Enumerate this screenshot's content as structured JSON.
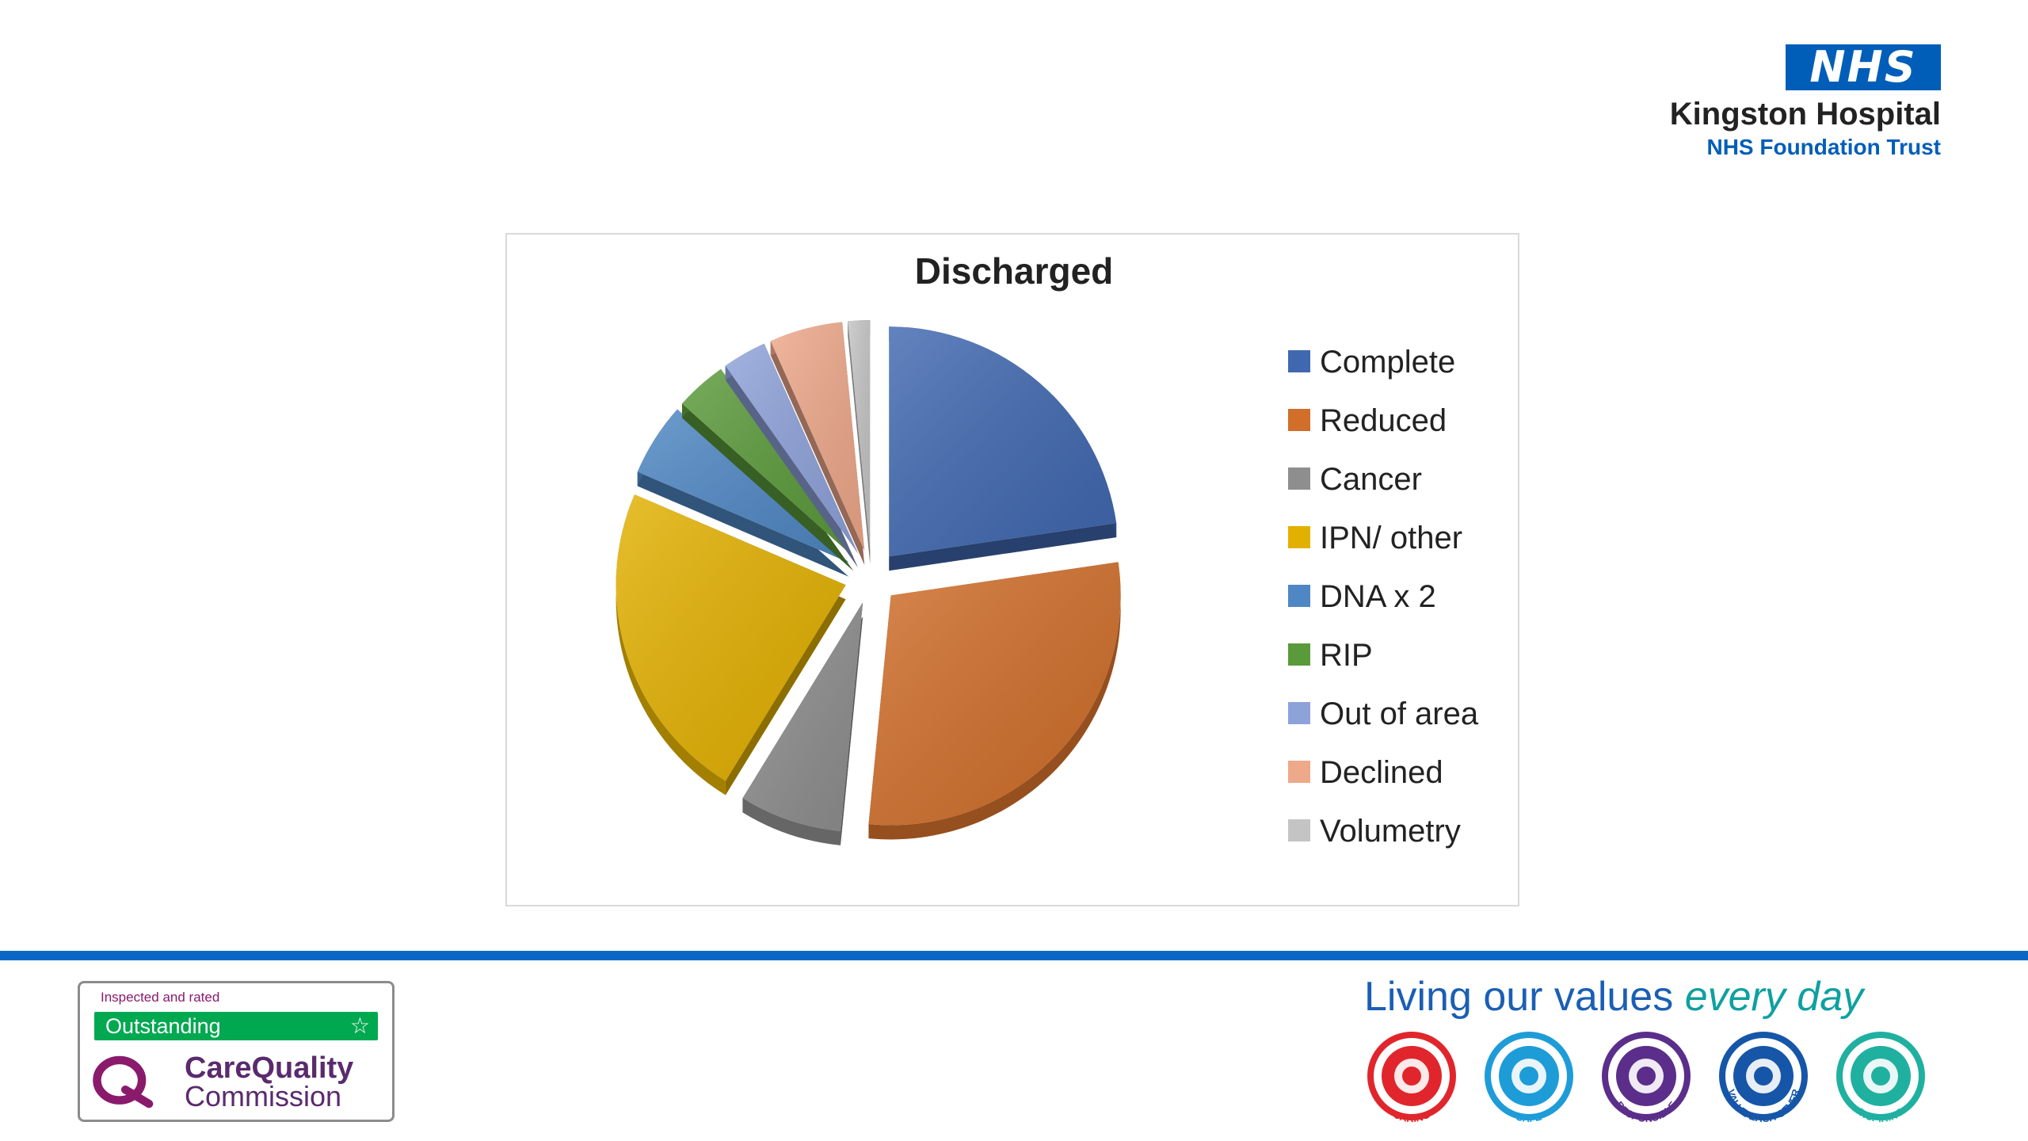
{
  "header": {
    "nhs_badge": "NHS",
    "hospital_name": "Kingston Hospital",
    "trust_name": "NHS Foundation Trust"
  },
  "chart_data": {
    "type": "pie",
    "title": "Discharged",
    "legend_position": "right",
    "categories": [
      "Complete",
      "Reduced",
      "Cancer",
      "IPN/ other",
      "DNA x 2",
      "RIP",
      "Out of area",
      "Declined",
      "Volumetry"
    ],
    "values": [
      22,
      28,
      7,
      22,
      5,
      3.5,
      3,
      5,
      1.5
    ],
    "colors": [
      "#4068b0",
      "#d06e2a",
      "#8e8e8e",
      "#e2b000",
      "#4f87c4",
      "#5a9a3a",
      "#8ea2da",
      "#eea88a",
      "#c4c4c4"
    ]
  },
  "footer": {
    "cqc_inspected": "Inspected and rated",
    "cqc_rating": "Outstanding",
    "cqc_name_line1": "CareQuality",
    "cqc_name_line2": "Commission",
    "values_title_main": "Living our values ",
    "values_title_accent": "every day",
    "values": [
      {
        "label": "CARING",
        "color": "#e0262c",
        "icon": "heart-hands-icon"
      },
      {
        "label": "SAFE",
        "color": "#1e9cd8",
        "icon": "padlock-heart-icon"
      },
      {
        "label": "RESPONSIBLE",
        "color": "#5a2e8a",
        "icon": "heart-check-icon"
      },
      {
        "label": "VALUE EACH OTHER",
        "color": "#1656a8",
        "icon": "people-icon"
      },
      {
        "label": "INSPIRING",
        "color": "#20b0a0",
        "icon": "lightbulb-icon"
      }
    ]
  }
}
